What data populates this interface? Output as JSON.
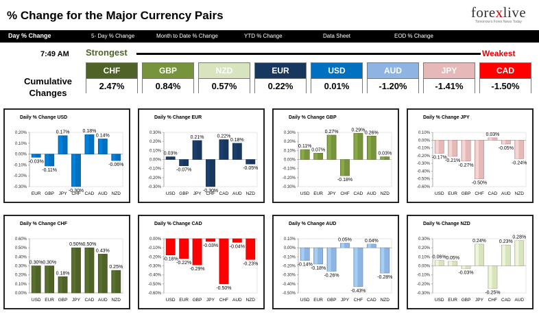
{
  "header": {
    "title": "% Change for the Major Currency Pairs",
    "logo": {
      "name_part1": "fore",
      "name_x": "x",
      "name_part2": "live",
      "tagline": "Tomorrow's Forex News Today"
    }
  },
  "nav": {
    "items": [
      "Day % Change",
      "5- Day % Change",
      "Month to Date % Change",
      "YTD % Change",
      "Data Sheet",
      "EOD % Change"
    ]
  },
  "summary": {
    "time": "7:49 AM",
    "strongest_label": "Strongest",
    "weakest_label": "Weakest",
    "cumulative_label": "Cumulative Changes",
    "cards": [
      {
        "code": "CHF",
        "value": "2.47%",
        "color": "#4f6228"
      },
      {
        "code": "GBP",
        "value": "0.84%",
        "color": "#77933c"
      },
      {
        "code": "NZD",
        "value": "0.57%",
        "color": "#d7e4bd"
      },
      {
        "code": "EUR",
        "value": "0.22%",
        "color": "#17375e"
      },
      {
        "code": "USD",
        "value": "0.01%",
        "color": "#0070c0"
      },
      {
        "code": "AUD",
        "value": "-1.20%",
        "color": "#8eb4e3"
      },
      {
        "code": "JPY",
        "value": "-1.41%",
        "color": "#e6b9b8"
      },
      {
        "code": "CAD",
        "value": "-1.50%",
        "color": "#ff0000"
      }
    ]
  },
  "chart_data": [
    {
      "type": "bar",
      "title": "Daily % Change USD",
      "categories": [
        "EUR",
        "GBP",
        "JPY",
        "CHF",
        "CAD",
        "AUD",
        "NZD"
      ],
      "values": [
        -0.03,
        -0.11,
        0.17,
        -0.3,
        0.18,
        0.14,
        -0.06
      ],
      "labels": [
        "-0.03%",
        "-0.11%",
        "0.17%",
        "-0.30%",
        "0.18%",
        "0.14%",
        "-0.06%"
      ],
      "ylim": [
        -0.3,
        0.2
      ],
      "ticks": [
        "0.20%",
        "0.10%",
        "0.00%",
        "-0.10%",
        "-0.20%",
        "-0.30%"
      ],
      "color": "#0070c0"
    },
    {
      "type": "bar",
      "title": "Daily % Change EUR",
      "categories": [
        "USD",
        "GBP",
        "JPY",
        "CHF",
        "CAD",
        "AUD",
        "NZD"
      ],
      "values": [
        0.03,
        -0.07,
        0.21,
        -0.3,
        0.22,
        0.18,
        -0.05
      ],
      "labels": [
        "0.03%",
        "-0.07%",
        "0.21%",
        "-0.30%",
        "0.22%",
        "0.18%",
        "-0.05%"
      ],
      "ylim": [
        -0.3,
        0.3
      ],
      "ticks": [
        "0.30%",
        "0.20%",
        "0.10%",
        "0.00%",
        "-0.10%",
        "-0.20%",
        "-0.30%"
      ],
      "color": "#17375e"
    },
    {
      "type": "bar",
      "title": "Daily % Change GBP",
      "categories": [
        "USD",
        "EUR",
        "JPY",
        "CHF",
        "CAD",
        "AUD",
        "NZD"
      ],
      "values": [
        0.11,
        0.07,
        0.27,
        -0.18,
        0.29,
        0.26,
        0.03
      ],
      "labels": [
        "0.11%",
        "0.07%",
        "0.27%",
        "-0.18%",
        "0.29%",
        "0.26%",
        "0.03%"
      ],
      "ylim": [
        -0.3,
        0.3
      ],
      "ticks": [
        "0.30%",
        "0.20%",
        "0.10%",
        "0.00%",
        "-0.10%",
        "-0.20%",
        "-0.30%"
      ],
      "color": "#77933c"
    },
    {
      "type": "bar",
      "title": "Daily % Change JPY",
      "categories": [
        "USD",
        "EUR",
        "GBP",
        "CHF",
        "CAD",
        "AUD",
        "NZD"
      ],
      "values": [
        -0.17,
        -0.21,
        -0.27,
        -0.5,
        0.03,
        -0.05,
        -0.24
      ],
      "labels": [
        "-0.17%",
        "-0.21%",
        "-0.27%",
        "-0.50%",
        "0.03%",
        "-0.05%",
        "-0.24%"
      ],
      "ylim": [
        -0.6,
        0.1
      ],
      "ticks": [
        "0.10%",
        "0.00%",
        "-0.10%",
        "-0.20%",
        "-0.30%",
        "-0.40%",
        "-0.50%",
        "-0.60%"
      ],
      "color": "#e6b9b8"
    },
    {
      "type": "bar",
      "title": "Daily % Change CHF",
      "categories": [
        "USD",
        "EUR",
        "GBP",
        "JPY",
        "CAD",
        "AUD",
        "NZD"
      ],
      "values": [
        0.3,
        0.3,
        0.18,
        0.5,
        0.5,
        0.43,
        0.25
      ],
      "labels": [
        "0.30%",
        "0.30%",
        "0.18%",
        "0.50%",
        "0.50%",
        "0.43%",
        "0.25%"
      ],
      "ylim": [
        0,
        0.6
      ],
      "ticks": [
        "0.60%",
        "0.50%",
        "0.40%",
        "0.30%",
        "0.20%",
        "0.10%",
        "0.00%"
      ],
      "color": "#4f6228"
    },
    {
      "type": "bar",
      "title": "Daily % Change CAD",
      "categories": [
        "USD",
        "EUR",
        "GBP",
        "JPY",
        "CHF",
        "AUD",
        "NZD"
      ],
      "values": [
        -0.18,
        -0.22,
        -0.29,
        -0.03,
        -0.5,
        -0.04,
        -0.23
      ],
      "labels": [
        "-0.18%",
        "-0.22%",
        "-0.29%",
        "-0.03%",
        "-0.50%",
        "-0.04%",
        "-0.23%"
      ],
      "ylim": [
        -0.6,
        0
      ],
      "ticks": [
        "0.00%",
        "-0.10%",
        "-0.20%",
        "-0.30%",
        "-0.40%",
        "-0.50%",
        "-0.60%"
      ],
      "color": "#ff0000"
    },
    {
      "type": "bar",
      "title": "Daily % Change AUD",
      "categories": [
        "USD",
        "EUR",
        "GBP",
        "JPY",
        "CHF",
        "CAD",
        "NZD"
      ],
      "values": [
        -0.14,
        -0.18,
        -0.26,
        0.05,
        -0.43,
        0.04,
        -0.28
      ],
      "labels": [
        "-0.14%",
        "-0.18%",
        "-0.26%",
        "0.05%",
        "-0.43%",
        "0.04%",
        "-0.28%"
      ],
      "ylim": [
        -0.5,
        0.1
      ],
      "ticks": [
        "0.10%",
        "0.00%",
        "-0.10%",
        "-0.20%",
        "-0.30%",
        "-0.40%",
        "-0.50%"
      ],
      "color": "#8eb4e3"
    },
    {
      "type": "bar",
      "title": "Daily % Change NZD",
      "categories": [
        "USD",
        "EUR",
        "GBP",
        "JPY",
        "CHF",
        "CAD",
        "AUD"
      ],
      "values": [
        0.06,
        0.05,
        -0.03,
        0.24,
        -0.25,
        0.23,
        0.28
      ],
      "labels": [
        "0.06%",
        "0.05%",
        "-0.03%",
        "0.24%",
        "-0.25%",
        "0.23%",
        "0.28%"
      ],
      "ylim": [
        -0.3,
        0.3
      ],
      "ticks": [
        "0.30%",
        "0.20%",
        "0.10%",
        "0.00%",
        "-0.10%",
        "-0.20%",
        "-0.30%"
      ],
      "color": "#d7e4bd"
    }
  ]
}
